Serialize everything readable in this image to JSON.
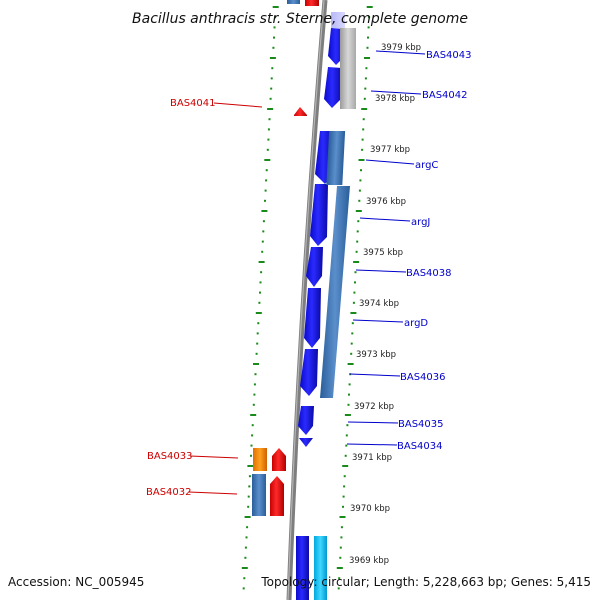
{
  "title": "Bacillus anthracis str. Sterne, complete genome",
  "footer": {
    "accession": "Accession: NC_005945",
    "topology": "Topology: circular; Length: 5,228,663 bp; Genes: 5,415"
  },
  "ticks": [
    "3979 kbp",
    "3978 kbp",
    "3977 kbp",
    "3976 kbp",
    "3975 kbp",
    "3974 kbp",
    "3973 kbp",
    "3972 kbp",
    "3971 kbp",
    "3970 kbp",
    "3969 kbp"
  ],
  "genes_forward": [
    "BAS4043",
    "BAS4042",
    "argC",
    "argJ",
    "BAS4038",
    "argD",
    "BAS4036",
    "BAS4035",
    "BAS4034"
  ],
  "genes_reverse": [
    "BAS4041",
    "BAS4033",
    "BAS4032"
  ],
  "colors": {
    "forward_label": "#0000cc",
    "reverse_label": "#cc0000",
    "forward_cds": "#1010ee",
    "reverse_cds": "#ee1010",
    "dots": "#1a8a1a",
    "backbone": "#808080"
  }
}
